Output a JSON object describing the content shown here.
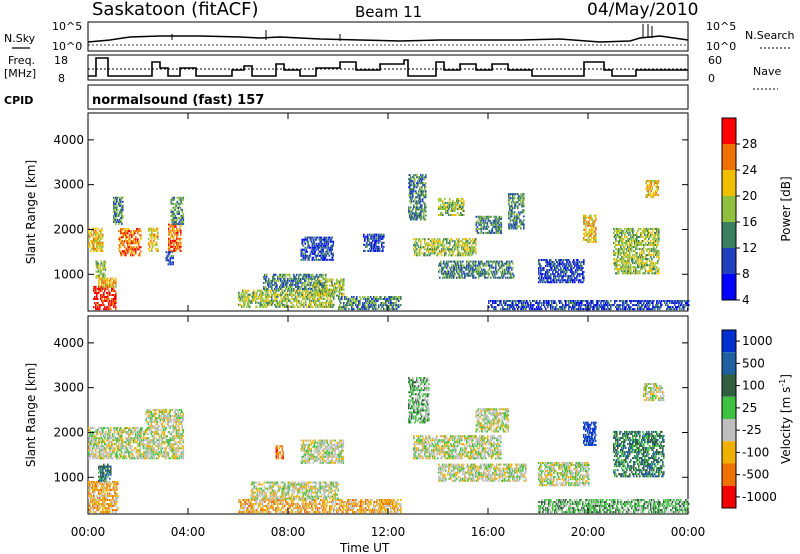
{
  "header": {
    "station": "Saskatoon (fitACF)",
    "beam": "Beam 11",
    "date": "04/May/2010"
  },
  "side_labels": {
    "nsky": "N.Sky",
    "nsky_tick_hi": "10^5",
    "nsky_tick_lo": "10^0",
    "nsearch": "N.Search",
    "nsearch_tick_hi": "10^5",
    "nsearch_tick_lo": "10^0",
    "freq_line1": "Freq.",
    "freq_line2": "[MHz]",
    "freq_tick_hi": "18",
    "freq_tick_lo": "8",
    "nave": "Nave",
    "nave_tick_hi": "60",
    "nave_tick_lo": "0",
    "cpid": "CPID",
    "cpid_text": "normalsound (fast) 157"
  },
  "chart_data": [
    {
      "type": "heatmap",
      "panel": "power",
      "ylabel": "Slant Range [km]",
      "xlabel": "Time UT",
      "ylim": [
        180,
        4600
      ],
      "yticks": [
        1000,
        2000,
        3000,
        4000
      ],
      "xticks": [
        "00:00",
        "04:00",
        "08:00",
        "12:00",
        "16:00",
        "20:00",
        "00:00"
      ],
      "colorbar": {
        "label": "Power [dB]",
        "ticks": [
          "4",
          "8",
          "12",
          "16",
          "20",
          "24",
          "28"
        ],
        "colors": [
          "#0000ff",
          "#2040c0",
          "#3a8060",
          "#90c040",
          "#f0c000",
          "#f07000",
          "#ff0000"
        ]
      },
      "regions": [
        {
          "t0": 0.2,
          "t1": 1.1,
          "r0": 200,
          "r1": 700,
          "level": 6
        },
        {
          "t0": 0.4,
          "t1": 1.1,
          "r0": 700,
          "r1": 900,
          "level": 4
        },
        {
          "t0": 0.0,
          "t1": 0.6,
          "r0": 1500,
          "r1": 2000,
          "level": 4
        },
        {
          "t0": 0.3,
          "t1": 0.7,
          "r0": 900,
          "r1": 1300,
          "level": 3
        },
        {
          "t0": 1.2,
          "t1": 2.1,
          "r0": 1400,
          "r1": 2000,
          "level": 5
        },
        {
          "t0": 1.0,
          "t1": 1.4,
          "r0": 2100,
          "r1": 2700,
          "level": 2
        },
        {
          "t0": 2.4,
          "t1": 2.8,
          "r0": 1500,
          "r1": 2000,
          "level": 4
        },
        {
          "t0": 3.2,
          "t1": 3.7,
          "r0": 1500,
          "r1": 2100,
          "level": 5
        },
        {
          "t0": 3.3,
          "t1": 3.8,
          "r0": 2100,
          "r1": 2700,
          "level": 2
        },
        {
          "t0": 3.1,
          "t1": 3.4,
          "r0": 1200,
          "r1": 1500,
          "level": 1
        },
        {
          "t0": 6.0,
          "t1": 9.8,
          "r0": 250,
          "r1": 650,
          "level": 3
        },
        {
          "t0": 7.0,
          "t1": 9.5,
          "r0": 650,
          "r1": 1000,
          "level": 2
        },
        {
          "t0": 9.0,
          "t1": 10.2,
          "r0": 500,
          "r1": 900,
          "level": 3
        },
        {
          "t0": 8.5,
          "t1": 9.8,
          "r0": 1300,
          "r1": 1800,
          "level": 1
        },
        {
          "t0": 10.0,
          "t1": 12.5,
          "r0": 200,
          "r1": 500,
          "level": 2
        },
        {
          "t0": 11.0,
          "t1": 11.8,
          "r0": 1500,
          "r1": 1900,
          "level": 1
        },
        {
          "t0": 12.8,
          "t1": 13.5,
          "r0": 2200,
          "r1": 3200,
          "level": 2
        },
        {
          "t0": 13.0,
          "t1": 15.5,
          "r0": 1400,
          "r1": 1800,
          "level": 3
        },
        {
          "t0": 14.0,
          "t1": 17.0,
          "r0": 900,
          "r1": 1300,
          "level": 2
        },
        {
          "t0": 14.0,
          "t1": 15.0,
          "r0": 2300,
          "r1": 2700,
          "level": 3
        },
        {
          "t0": 15.5,
          "t1": 16.5,
          "r0": 1900,
          "r1": 2300,
          "level": 2
        },
        {
          "t0": 16.8,
          "t1": 17.4,
          "r0": 2000,
          "r1": 2800,
          "level": 2
        },
        {
          "t0": 18.0,
          "t1": 19.8,
          "r0": 800,
          "r1": 1300,
          "level": 1
        },
        {
          "t0": 19.8,
          "t1": 20.3,
          "r0": 1700,
          "r1": 2300,
          "level": 4
        },
        {
          "t0": 21.0,
          "t1": 22.8,
          "r0": 1000,
          "r1": 2000,
          "level": 3
        },
        {
          "t0": 22.3,
          "t1": 22.8,
          "r0": 2700,
          "r1": 3100,
          "level": 4
        },
        {
          "t0": 16.0,
          "t1": 24.0,
          "r0": 200,
          "r1": 400,
          "level": 1
        }
      ]
    },
    {
      "type": "heatmap",
      "panel": "velocity",
      "ylabel": "Slant Range [km]",
      "xlabel": "Time UT",
      "ylim": [
        180,
        4600
      ],
      "yticks": [
        1000,
        2000,
        3000,
        4000
      ],
      "xticks": [
        "00:00",
        "04:00",
        "08:00",
        "12:00",
        "16:00",
        "20:00",
        "00:00"
      ],
      "colorbar": {
        "label": "Velocity [m s",
        "label_sup": "-1",
        "label_tail": "]",
        "ticks": [
          "1000",
          "500",
          "100",
          "25",
          "-25",
          "-100",
          "-500",
          "-1000"
        ],
        "colors": [
          "#0030d0",
          "#2060a0",
          "#306040",
          "#40c040",
          "#bebebe",
          "#f0b000",
          "#f07000",
          "#f00000"
        ]
      },
      "regions": [
        {
          "t0": 0.0,
          "t1": 1.2,
          "r0": 200,
          "r1": 900,
          "level": 5
        },
        {
          "t0": 0.0,
          "t1": 2.3,
          "r0": 1400,
          "r1": 2100,
          "level": 4
        },
        {
          "t0": 0.4,
          "t1": 0.9,
          "r0": 900,
          "r1": 1300,
          "level": 2
        },
        {
          "t0": 2.3,
          "t1": 3.8,
          "r0": 1400,
          "r1": 2500,
          "level": 4
        },
        {
          "t0": 6.0,
          "t1": 12.5,
          "r0": 200,
          "r1": 500,
          "level": 5
        },
        {
          "t0": 6.5,
          "t1": 10.0,
          "r0": 500,
          "r1": 900,
          "level": 4
        },
        {
          "t0": 8.5,
          "t1": 10.2,
          "r0": 1300,
          "r1": 1800,
          "level": 4
        },
        {
          "t0": 7.5,
          "t1": 7.8,
          "r0": 1400,
          "r1": 1700,
          "level": 6
        },
        {
          "t0": 12.8,
          "t1": 13.6,
          "r0": 2200,
          "r1": 3200,
          "level": 3
        },
        {
          "t0": 13.0,
          "t1": 16.5,
          "r0": 1400,
          "r1": 1900,
          "level": 4
        },
        {
          "t0": 14.0,
          "t1": 17.5,
          "r0": 900,
          "r1": 1300,
          "level": 4
        },
        {
          "t0": 15.5,
          "t1": 16.8,
          "r0": 2000,
          "r1": 2500,
          "level": 4
        },
        {
          "t0": 18.0,
          "t1": 20.0,
          "r0": 800,
          "r1": 1300,
          "level": 4
        },
        {
          "t0": 19.8,
          "t1": 20.3,
          "r0": 1700,
          "r1": 2200,
          "level": 0
        },
        {
          "t0": 21.0,
          "t1": 23.0,
          "r0": 1000,
          "r1": 2000,
          "level": 2
        },
        {
          "t0": 22.2,
          "t1": 23.0,
          "r0": 2700,
          "r1": 3100,
          "level": 4
        },
        {
          "t0": 18.0,
          "t1": 24.0,
          "r0": 200,
          "r1": 500,
          "level": 3
        }
      ]
    }
  ]
}
